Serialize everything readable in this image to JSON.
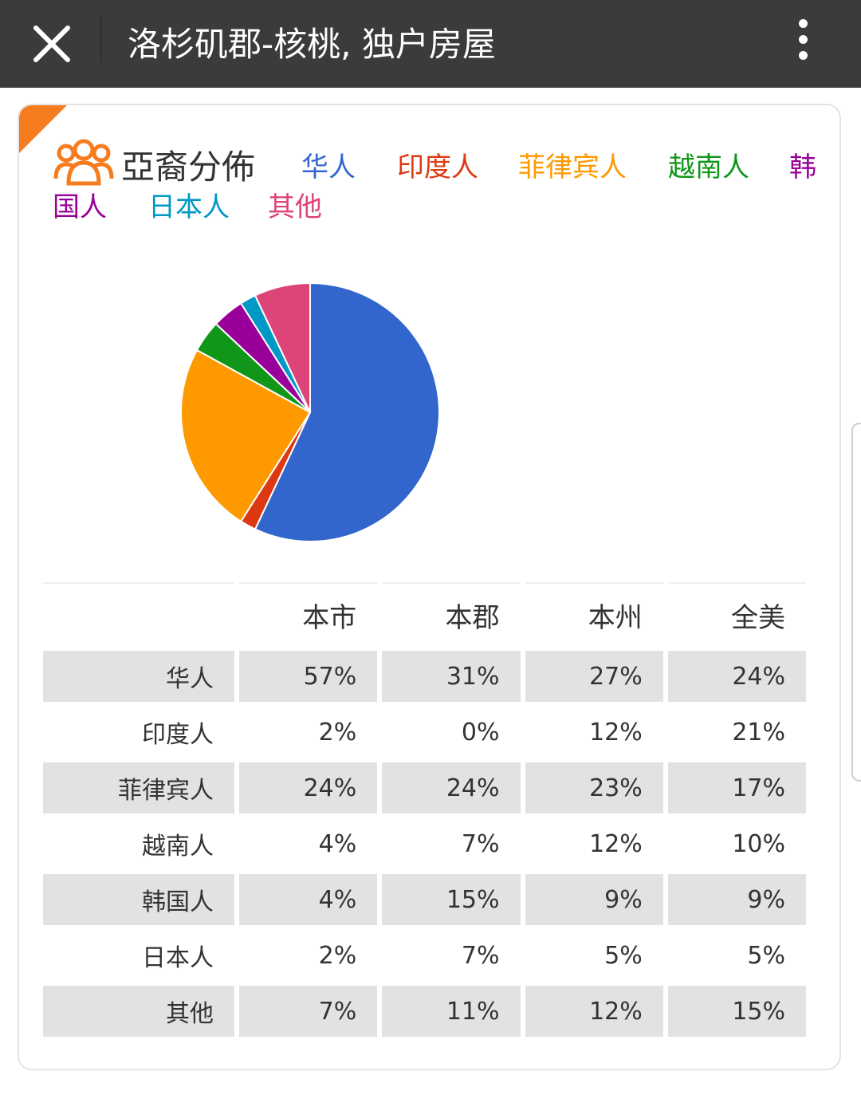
{
  "topbar": {
    "title": "洛杉矶郡-核桃, 独户房屋",
    "close_icon": "close-icon",
    "more_icon": "more-vertical-icon"
  },
  "section": {
    "title": "亞裔分佈",
    "icon": "people-group-icon"
  },
  "legend": [
    {
      "label": "华人",
      "color": "#3366cc"
    },
    {
      "label": "印度人",
      "color": "#dc3912"
    },
    {
      "label": "菲律宾人",
      "color": "#ff9900"
    },
    {
      "label": "越南人",
      "color": "#109618"
    },
    {
      "label": "韩国人",
      "color": "#990099"
    },
    {
      "label": "日本人",
      "color": "#0099c6"
    },
    {
      "label": "其他",
      "color": "#dd4477"
    }
  ],
  "chart_data": {
    "type": "pie",
    "categories": [
      "华人",
      "印度人",
      "菲律宾人",
      "越南人",
      "韩国人",
      "日本人",
      "其他"
    ],
    "values": [
      57,
      2,
      24,
      4,
      4,
      2,
      7
    ],
    "colors": [
      "#3366cc",
      "#dc3912",
      "#ff9900",
      "#109618",
      "#990099",
      "#0099c6",
      "#dd4477"
    ],
    "start_angle_deg": 0,
    "direction": "clockwise"
  },
  "table": {
    "columns": [
      "",
      "本市",
      "本郡",
      "本州",
      "全美"
    ],
    "rows": [
      {
        "label": "华人",
        "values": [
          "57%",
          "31%",
          "27%",
          "24%"
        ]
      },
      {
        "label": "印度人",
        "values": [
          "2%",
          "0%",
          "12%",
          "21%"
        ]
      },
      {
        "label": "菲律宾人",
        "values": [
          "24%",
          "24%",
          "23%",
          "17%"
        ]
      },
      {
        "label": "越南人",
        "values": [
          "4%",
          "7%",
          "12%",
          "10%"
        ]
      },
      {
        "label": "韩国人",
        "values": [
          "4%",
          "15%",
          "9%",
          "9%"
        ]
      },
      {
        "label": "日本人",
        "values": [
          "2%",
          "7%",
          "5%",
          "5%"
        ]
      },
      {
        "label": "其他",
        "values": [
          "7%",
          "11%",
          "12%",
          "15%"
        ]
      }
    ]
  },
  "accent_color": "#f57c1f"
}
